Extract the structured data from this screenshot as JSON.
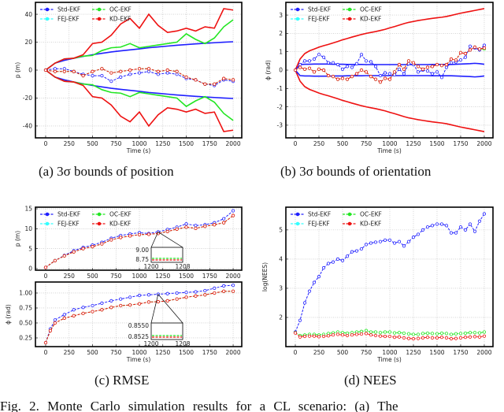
{
  "captions": {
    "a": "(a) 3σ bounds of position",
    "b": "(b) 3σ bounds of orientation",
    "c": "(c) RMSE",
    "d": "(d) NEES",
    "figure": "Fig. 2.   Monte Carlo simulation results for a CL scenario: (a) The"
  },
  "legend": [
    {
      "name": "Std-EKF",
      "color": "#1f1fff"
    },
    {
      "name": "OC-EKF",
      "color": "#22e622"
    },
    {
      "name": "FEJ-EKF",
      "color": "#33ffff"
    },
    {
      "name": "KD-EKF",
      "color": "#ee1111"
    }
  ],
  "chart_data": [
    {
      "id": "a",
      "type": "line",
      "xlabel": "Time (s)",
      "ylabel": "p (m)",
      "xlim": [
        -109,
        2092
      ],
      "ylim": [
        -48.5,
        48.5
      ],
      "grid": true,
      "legend_position": "top-left",
      "xticks": [
        "0",
        "250",
        "500",
        "750",
        "1000",
        "1250",
        "1500",
        "1750",
        "2000"
      ],
      "yticks": [
        "-40",
        "-20",
        "0",
        "20",
        "40"
      ],
      "x": [
        0,
        100,
        200,
        300,
        400,
        500,
        600,
        700,
        800,
        900,
        1000,
        1100,
        1200,
        1300,
        1400,
        1500,
        1600,
        1700,
        1800,
        1900,
        2000
      ],
      "series": [
        {
          "name": "Std-EKF",
          "kind": "bound",
          "symmetric": true,
          "color": "#1f1fff",
          "values": [
            0,
            5,
            7,
            8.5,
            9.8,
            11,
            12,
            13,
            13.8,
            14.5,
            15.2,
            16,
            16.6,
            17.2,
            17.8,
            18.3,
            18.8,
            19.2,
            19.6,
            20,
            20.3
          ]
        },
        {
          "name": "OC-EKF",
          "kind": "bound",
          "symmetric": true,
          "color": "#22e622",
          "values": [
            0,
            5,
            8,
            8.5,
            10,
            10.5,
            14,
            16,
            16.5,
            19,
            16,
            17,
            18,
            19,
            20,
            26,
            22,
            19,
            23,
            31,
            36
          ]
        },
        {
          "name": "KD-EKF",
          "kind": "bound",
          "symmetric": true,
          "color": "#ee1111",
          "values": [
            0,
            5,
            8,
            8.5,
            11,
            19,
            20,
            25,
            33,
            37,
            30,
            40,
            32,
            27,
            28,
            30,
            28,
            31,
            30,
            44,
            43
          ]
        },
        {
          "name": "Std-EKF",
          "kind": "estimate",
          "color": "#1f1fff",
          "values": [
            0,
            1,
            1,
            -1,
            -3,
            -4,
            -4,
            -8,
            -5,
            -3,
            -2,
            -1,
            -3,
            -2,
            -3,
            -6,
            -7,
            -10,
            -11,
            -7,
            -8
          ]
        },
        {
          "name": "OC-EKF",
          "kind": "estimate",
          "color": "#22e622",
          "values": [
            0,
            -1,
            -1,
            -1,
            -4,
            -1,
            1,
            -2,
            -1,
            0,
            1,
            1,
            -1,
            0,
            -1,
            -5,
            -7,
            -10,
            -10,
            -6,
            -7
          ]
        },
        {
          "name": "KD-EKF",
          "kind": "estimate",
          "color": "#ee1111",
          "values": [
            0,
            -1,
            -1,
            -1,
            -4,
            -1,
            1,
            -2,
            -1,
            0,
            1,
            1,
            -1,
            0,
            -1,
            -5,
            -7,
            -10,
            -10,
            -6,
            -7
          ]
        }
      ]
    },
    {
      "id": "b",
      "type": "line",
      "xlabel": "Time (s)",
      "ylabel": "ϕ (rad)",
      "xlim": [
        -100,
        2092
      ],
      "ylim": [
        -3.69,
        3.69
      ],
      "grid": true,
      "legend_position": "top-left",
      "xticks": [
        "0",
        "250",
        "500",
        "750",
        "1000",
        "1250",
        "1500",
        "1750",
        "2000"
      ],
      "yticks": [
        "-3",
        "-2",
        "-1",
        "0",
        "1",
        "2",
        "3"
      ],
      "x": [
        0,
        50,
        100,
        150,
        200,
        250,
        300,
        350,
        400,
        450,
        500,
        550,
        600,
        650,
        700,
        750,
        800,
        850,
        900,
        950,
        1000,
        1050,
        1100,
        1150,
        1200,
        1250,
        1300,
        1350,
        1400,
        1450,
        1500,
        1550,
        1600,
        1650,
        1700,
        1750,
        1800,
        1850,
        1900,
        1950,
        2000
      ],
      "series": [
        {
          "name": "KD-EKF",
          "kind": "bound",
          "symmetric": true,
          "color": "#ee1111",
          "values": [
            0,
            0.6,
            0.9,
            1.05,
            1.15,
            1.25,
            1.33,
            1.4,
            1.48,
            1.56,
            1.65,
            1.72,
            1.8,
            1.87,
            1.94,
            2.0,
            2.05,
            2.1,
            2.16,
            2.22,
            2.3,
            2.37,
            2.45,
            2.53,
            2.6,
            2.65,
            2.7,
            2.74,
            2.78,
            2.82,
            2.85,
            2.88,
            2.92,
            2.98,
            3.04,
            3.1,
            3.15,
            3.2,
            3.25,
            3.3,
            3.35
          ]
        },
        {
          "name": "Std-EKF",
          "kind": "bound",
          "symmetric": true,
          "color": "#1f1fff",
          "values": [
            0,
            0.3,
            0.32,
            0.32,
            0.33,
            0.33,
            0.33,
            0.33,
            0.32,
            0.32,
            0.32,
            0.31,
            0.31,
            0.31,
            0.31,
            0.3,
            0.3,
            0.3,
            0.3,
            0.3,
            0.3,
            0.3,
            0.3,
            0.3,
            0.3,
            0.3,
            0.3,
            0.3,
            0.3,
            0.31,
            0.31,
            0.31,
            0.31,
            0.31,
            0.32,
            0.33,
            0.34,
            0.35,
            0.37,
            0.35,
            0.32
          ]
        },
        {
          "name": "Std-EKF",
          "kind": "estimate",
          "color": "#1f1fff",
          "values": [
            0,
            0.3,
            0.5,
            0.5,
            0.6,
            0.85,
            0.7,
            0.4,
            0.4,
            0.3,
            0.05,
            0.2,
            0.15,
            0.35,
            0.85,
            0.5,
            0.45,
            0.2,
            -0.3,
            -0.15,
            -0.2,
            -0.25,
            0.05,
            -0.2,
            0.35,
            0.3,
            -0.1,
            0,
            -0.05,
            -0.2,
            -0.1,
            -0.4,
            0.15,
            0.4,
            0.45,
            0.55,
            0.7,
            1.3,
            1.2,
            1.1,
            1.35
          ]
        },
        {
          "name": "OC-EKF",
          "kind": "estimate",
          "color": "#22e622",
          "values": [
            0,
            0.15,
            0.05,
            0.1,
            -0.1,
            0.05,
            0,
            -0.3,
            -0.35,
            -0.5,
            -0.45,
            -0.5,
            -0.35,
            -0.2,
            0,
            -0.1,
            -0.35,
            -0.5,
            -0.65,
            -0.45,
            -0.5,
            -0.1,
            0.3,
            0.05,
            0.5,
            0.4,
            0.2,
            0.05,
            0.15,
            0.2,
            0.3,
            0.25,
            0.3,
            0.6,
            0.55,
            0.95,
            0.9,
            1.1,
            1.25,
            1.15,
            1.15
          ]
        },
        {
          "name": "KD-EKF",
          "kind": "estimate",
          "color": "#ee1111",
          "values": [
            0,
            0.15,
            0.05,
            0.1,
            -0.1,
            0.05,
            0,
            -0.3,
            -0.35,
            -0.5,
            -0.45,
            -0.5,
            -0.35,
            -0.2,
            0,
            -0.1,
            -0.35,
            -0.5,
            -0.65,
            -0.45,
            -0.5,
            -0.1,
            0.3,
            0.05,
            0.5,
            0.4,
            0.2,
            0.05,
            0.15,
            0.2,
            0.3,
            0.25,
            0.3,
            0.6,
            0.55,
            0.95,
            0.9,
            1.1,
            1.25,
            1.15,
            1.2
          ]
        }
      ]
    },
    {
      "id": "c1",
      "type": "line",
      "xlabel": "",
      "ylabel": "p (m)",
      "xlim": [
        -109,
        2092
      ],
      "ylim": [
        -0.4,
        15.4
      ],
      "grid": true,
      "legend_position": "top-left",
      "xticks": [
        "0",
        "250",
        "500",
        "750",
        "1000",
        "1250",
        "1500",
        "1750",
        "2000"
      ],
      "yticks": [
        "0",
        "5",
        "10",
        "15"
      ],
      "inset": {
        "yticks": [
          "9.00",
          "8.75"
        ],
        "xticks": [
          "1200",
          "1208"
        ]
      },
      "x": [
        0,
        100,
        200,
        300,
        400,
        500,
        600,
        700,
        800,
        900,
        1000,
        1100,
        1200,
        1300,
        1400,
        1500,
        1600,
        1700,
        1800,
        1900,
        2000
      ],
      "series": [
        {
          "name": "Std-EKF",
          "kind": "estimate",
          "color": "#1f1fff",
          "values": [
            0.3,
            2,
            3.3,
            4.5,
            5.3,
            5.9,
            6.6,
            7.6,
            8.3,
            8.7,
            9.0,
            8.8,
            9.2,
            9.8,
            10.4,
            11.2,
            10.8,
            11.0,
            11.5,
            12.5,
            14.5
          ]
        },
        {
          "name": "OC-EKF",
          "kind": "estimate",
          "color": "#22e622",
          "values": [
            0.3,
            2,
            3.2,
            4.2,
            5,
            5.5,
            6.2,
            7.2,
            7.8,
            8.2,
            8.5,
            8.6,
            8.8,
            9.3,
            9.9,
            10.4,
            10.1,
            10.6,
            11,
            11.5,
            13.3
          ]
        },
        {
          "name": "KD-EKF",
          "kind": "estimate",
          "color": "#ee1111",
          "values": [
            0.3,
            2,
            3.2,
            4.2,
            5,
            5.5,
            6.2,
            7.2,
            7.8,
            8.2,
            8.5,
            8.6,
            8.8,
            9.3,
            9.9,
            10.4,
            10.1,
            10.6,
            11,
            11.5,
            13.3
          ]
        }
      ]
    },
    {
      "id": "c2",
      "type": "line",
      "xlabel": "Time (s)",
      "ylabel": "ϕ (rad)",
      "xlim": [
        -109,
        2092
      ],
      "ylim": [
        0.105,
        1.184
      ],
      "grid": true,
      "xticks": [
        "0",
        "250",
        "500",
        "750",
        "1000",
        "1250",
        "1500",
        "1750",
        "2000"
      ],
      "yticks": [
        "0.25",
        "0.50",
        "0.75",
        "1.00"
      ],
      "inset": {
        "yticks": [
          "0.8550",
          "0.8525"
        ],
        "xticks": [
          "1200",
          "1208"
        ]
      },
      "x": [
        0,
        50,
        100,
        200,
        300,
        400,
        500,
        600,
        700,
        800,
        900,
        1000,
        1100,
        1200,
        1300,
        1400,
        1500,
        1600,
        1700,
        1800,
        1900,
        2000
      ],
      "series": [
        {
          "name": "Std-EKF",
          "kind": "estimate",
          "color": "#1f1fff",
          "values": [
            0.17,
            0.4,
            0.55,
            0.64,
            0.72,
            0.76,
            0.79,
            0.83,
            0.87,
            0.9,
            0.93,
            0.96,
            0.97,
            0.98,
            0.99,
            1.0,
            1.01,
            1.02,
            1.04,
            1.08,
            1.12,
            1.13
          ]
        },
        {
          "name": "OC-EKF",
          "kind": "estimate",
          "color": "#22e622",
          "values": [
            0.17,
            0.37,
            0.5,
            0.58,
            0.62,
            0.66,
            0.69,
            0.72,
            0.76,
            0.79,
            0.8,
            0.82,
            0.85,
            0.855,
            0.87,
            0.9,
            0.93,
            0.95,
            0.97,
            1.0,
            1.03,
            1.03
          ]
        },
        {
          "name": "KD-EKF",
          "kind": "estimate",
          "color": "#ee1111",
          "values": [
            0.17,
            0.37,
            0.5,
            0.58,
            0.62,
            0.66,
            0.69,
            0.72,
            0.76,
            0.79,
            0.8,
            0.82,
            0.85,
            0.855,
            0.87,
            0.9,
            0.93,
            0.95,
            0.97,
            1.0,
            1.03,
            1.03
          ]
        }
      ]
    },
    {
      "id": "d",
      "type": "line",
      "xlabel": "Time (s)",
      "ylabel": "log(NEES)",
      "xlim": [
        -100,
        2092
      ],
      "ylim": [
        1.0,
        5.78
      ],
      "grid": true,
      "legend_position": "top-left",
      "xticks": [
        "0",
        "250",
        "500",
        "750",
        "1000",
        "1250",
        "1500",
        "1750",
        "2000"
      ],
      "yticks": [
        "2",
        "3",
        "4",
        "5"
      ],
      "x": [
        0,
        50,
        100,
        150,
        200,
        250,
        300,
        350,
        400,
        450,
        500,
        550,
        600,
        650,
        700,
        750,
        800,
        850,
        900,
        950,
        1000,
        1050,
        1100,
        1150,
        1200,
        1250,
        1300,
        1350,
        1400,
        1450,
        1500,
        1550,
        1600,
        1650,
        1700,
        1750,
        1800,
        1850,
        1900,
        1950,
        2000
      ],
      "series": [
        {
          "name": "Std-EKF",
          "kind": "estimate",
          "color": "#1f1fff",
          "values": [
            1.5,
            1.9,
            2.5,
            2.9,
            3.2,
            3.4,
            3.7,
            3.85,
            3.9,
            4.0,
            3.95,
            4.1,
            4.25,
            4.28,
            4.35,
            4.5,
            4.55,
            4.58,
            4.6,
            4.65,
            4.65,
            4.55,
            4.6,
            4.45,
            4.6,
            4.75,
            4.85,
            5.0,
            5.1,
            5.15,
            5.2,
            5.2,
            5.15,
            4.9,
            4.9,
            5.1,
            5.0,
            5.2,
            4.95,
            5.3,
            5.55
          ]
        },
        {
          "name": "OC-EKF",
          "kind": "estimate",
          "color": "#22e622",
          "values": [
            1.48,
            1.38,
            1.4,
            1.42,
            1.42,
            1.4,
            1.42,
            1.45,
            1.47,
            1.5,
            1.48,
            1.46,
            1.48,
            1.5,
            1.52,
            1.55,
            1.5,
            1.5,
            1.48,
            1.5,
            1.5,
            1.47,
            1.48,
            1.46,
            1.44,
            1.42,
            1.42,
            1.45,
            1.46,
            1.45,
            1.44,
            1.46,
            1.45,
            1.42,
            1.44,
            1.45,
            1.46,
            1.48,
            1.48,
            1.47,
            1.5
          ]
        },
        {
          "name": "KD-EKF",
          "kind": "estimate",
          "color": "#ee1111",
          "values": [
            1.47,
            1.33,
            1.35,
            1.36,
            1.36,
            1.34,
            1.35,
            1.37,
            1.4,
            1.42,
            1.4,
            1.38,
            1.4,
            1.42,
            1.43,
            1.45,
            1.4,
            1.38,
            1.36,
            1.35,
            1.35,
            1.32,
            1.33,
            1.3,
            1.28,
            1.27,
            1.28,
            1.3,
            1.32,
            1.3,
            1.3,
            1.32,
            1.3,
            1.27,
            1.28,
            1.3,
            1.32,
            1.33,
            1.34,
            1.33,
            1.36
          ]
        }
      ]
    }
  ]
}
